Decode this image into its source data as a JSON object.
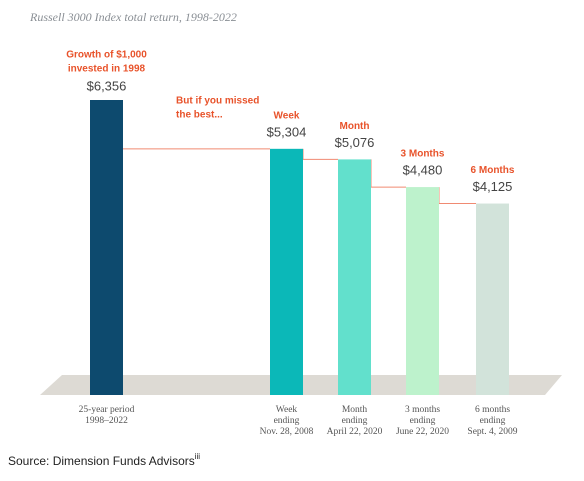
{
  "chart_data": {
    "type": "bar",
    "title": "Russell 3000 Index total return, 1998-2022",
    "categories": [
      [
        "25-year period",
        "1998–2022"
      ],
      [
        "Week",
        "ending",
        "Nov. 28, 2008"
      ],
      [
        "Month",
        "ending",
        "April 22, 2020"
      ],
      [
        "3 months",
        "ending",
        "June 22, 2020"
      ],
      [
        "6 months",
        "ending",
        "Sept. 4, 2009"
      ]
    ],
    "values": [
      6356,
      5304,
      5076,
      4480,
      4125
    ],
    "value_labels": [
      "$6,356",
      "$5,304",
      "$5,076",
      "$4,480",
      "$4,125"
    ],
    "bar_labels": [
      [
        "Growth of $1,000",
        "invested in 1998"
      ],
      [
        "Week"
      ],
      [
        "Month"
      ],
      [
        "3 Months"
      ],
      [
        "6 Months"
      ]
    ],
    "colors": [
      "#0d4a6e",
      "#0bb8b8",
      "#62e0cc",
      "#bdf2cc",
      "#d2e3da"
    ],
    "annotation": [
      "But if you missed",
      "the best..."
    ],
    "source": "Source: Dimension Funds Advisors",
    "source_superscript": "iii"
  }
}
